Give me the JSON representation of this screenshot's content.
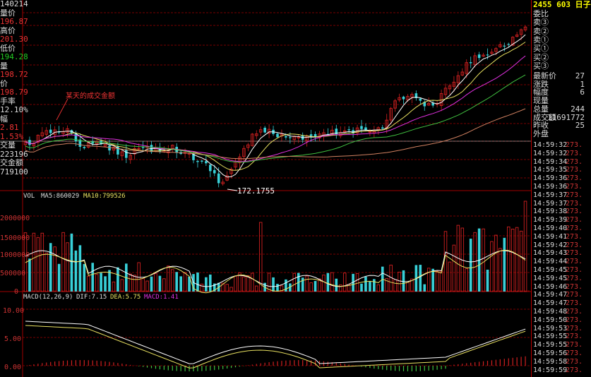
{
  "left_panel": {
    "rows": [
      {
        "label": "140214",
        "color": "#dddddd"
      },
      {
        "label": "量价",
        "color": "#dddddd"
      },
      {
        "label": "196.87",
        "color": "#e33"
      },
      {
        "label": "高价",
        "color": "#dddddd"
      },
      {
        "label": "201.30",
        "color": "#e33"
      },
      {
        "label": "低价",
        "color": "#dddddd"
      },
      {
        "label": "194.28",
        "color": "#2c2"
      },
      {
        "label": "量",
        "color": "#dddddd"
      },
      {
        "label": "198.72",
        "color": "#e33"
      },
      {
        "label": "价",
        "color": "#dddddd"
      },
      {
        "label": "198.79",
        "color": "#e33"
      },
      {
        "label": "手率",
        "color": "#dddddd"
      },
      {
        "label": "12.10%",
        "color": "#dddddd"
      },
      {
        "label": "幅",
        "color": "#dddddd"
      },
      {
        "label": "2.81",
        "color": "#e33"
      },
      {
        "label": "1.53%",
        "color": "#e33"
      },
      {
        "label": "交量",
        "color": "#dddddd"
      },
      {
        "label": "223196",
        "color": "#dddddd"
      },
      {
        "label": "交金额",
        "color": "#dddddd"
      },
      {
        "label": "719100",
        "color": "#dddddd"
      }
    ]
  },
  "price_panel": {
    "annotation_text": "某天的成交金额",
    "low_marker": "172.1755"
  },
  "volume_panel": {
    "header": [
      "VOL",
      "MA5:860029",
      "MA10:799526"
    ],
    "axis_labels": [
      "2000000",
      "1500000",
      "1000000",
      "500000",
      "0"
    ]
  },
  "macd_panel": {
    "header_label": "MACD(12,26,9)",
    "dif_label": "DIF:7.15",
    "dea_label": "DEA:5.75",
    "macd_label": "MACD:1.41",
    "axis_labels": [
      "10.00",
      "5.00",
      "0.00"
    ]
  },
  "right_panel": {
    "title": "2455 603 日子",
    "order_rows": [
      "委比",
      "卖③",
      "卖②",
      "卖①",
      "买①",
      "买②",
      "买③"
    ],
    "stats": [
      {
        "label": "最新价",
        "value": "27"
      },
      {
        "label": "涨跌",
        "value": "1"
      },
      {
        "label": "幅度",
        "value": "6"
      },
      {
        "label": "现量",
        "value": ""
      },
      {
        "label": "总量",
        "value": "244"
      },
      {
        "label": "成交额",
        "value": "11691772"
      },
      {
        "label": "昨收",
        "value": "25"
      },
      {
        "label": "外盘",
        "value": ""
      }
    ],
    "ticks": [
      {
        "time": "14:59:32",
        "price": "273."
      },
      {
        "time": "14:59:32",
        "price": "273."
      },
      {
        "time": "14:59:34",
        "price": "273."
      },
      {
        "time": "14:59:35",
        "price": "273."
      },
      {
        "time": "14:59:36",
        "price": "273."
      },
      {
        "time": "14:59:36",
        "price": "273."
      },
      {
        "time": "14:59:37",
        "price": "273."
      },
      {
        "time": "14:59:37",
        "price": "273."
      },
      {
        "time": "14:59:38",
        "price": "273."
      },
      {
        "time": "14:59:39",
        "price": "273."
      },
      {
        "time": "14:59:40",
        "price": "273."
      },
      {
        "time": "14:59:41",
        "price": "273."
      },
      {
        "time": "14:59:42",
        "price": "273."
      },
      {
        "time": "14:59:43",
        "price": "273."
      },
      {
        "time": "14:59:44",
        "price": "273."
      },
      {
        "time": "14:59:45",
        "price": "273."
      },
      {
        "time": "14:59:45",
        "price": "273."
      },
      {
        "time": "14:59:46",
        "price": "273."
      },
      {
        "time": "14:59:47",
        "price": "273."
      },
      {
        "time": "14:59:47",
        "price": "273."
      },
      {
        "time": "14:59:48",
        "price": "273."
      },
      {
        "time": "14:59:50",
        "price": "273."
      },
      {
        "time": "14:59:53",
        "price": "273."
      },
      {
        "time": "14:59:55",
        "price": "273."
      },
      {
        "time": "14:59:55",
        "price": "273."
      },
      {
        "time": "14:59:56",
        "price": "273."
      },
      {
        "time": "14:59:58",
        "price": "273."
      },
      {
        "time": "14:59:59",
        "price": "273."
      }
    ]
  },
  "colors": {
    "up": "#d02020",
    "down": "#38d0d8",
    "ma_white": "#ffffff",
    "ma_yellow": "#e8e060",
    "ma_magenta": "#e030e0",
    "ma_green": "#40c040",
    "grid": "#a00000"
  }
}
